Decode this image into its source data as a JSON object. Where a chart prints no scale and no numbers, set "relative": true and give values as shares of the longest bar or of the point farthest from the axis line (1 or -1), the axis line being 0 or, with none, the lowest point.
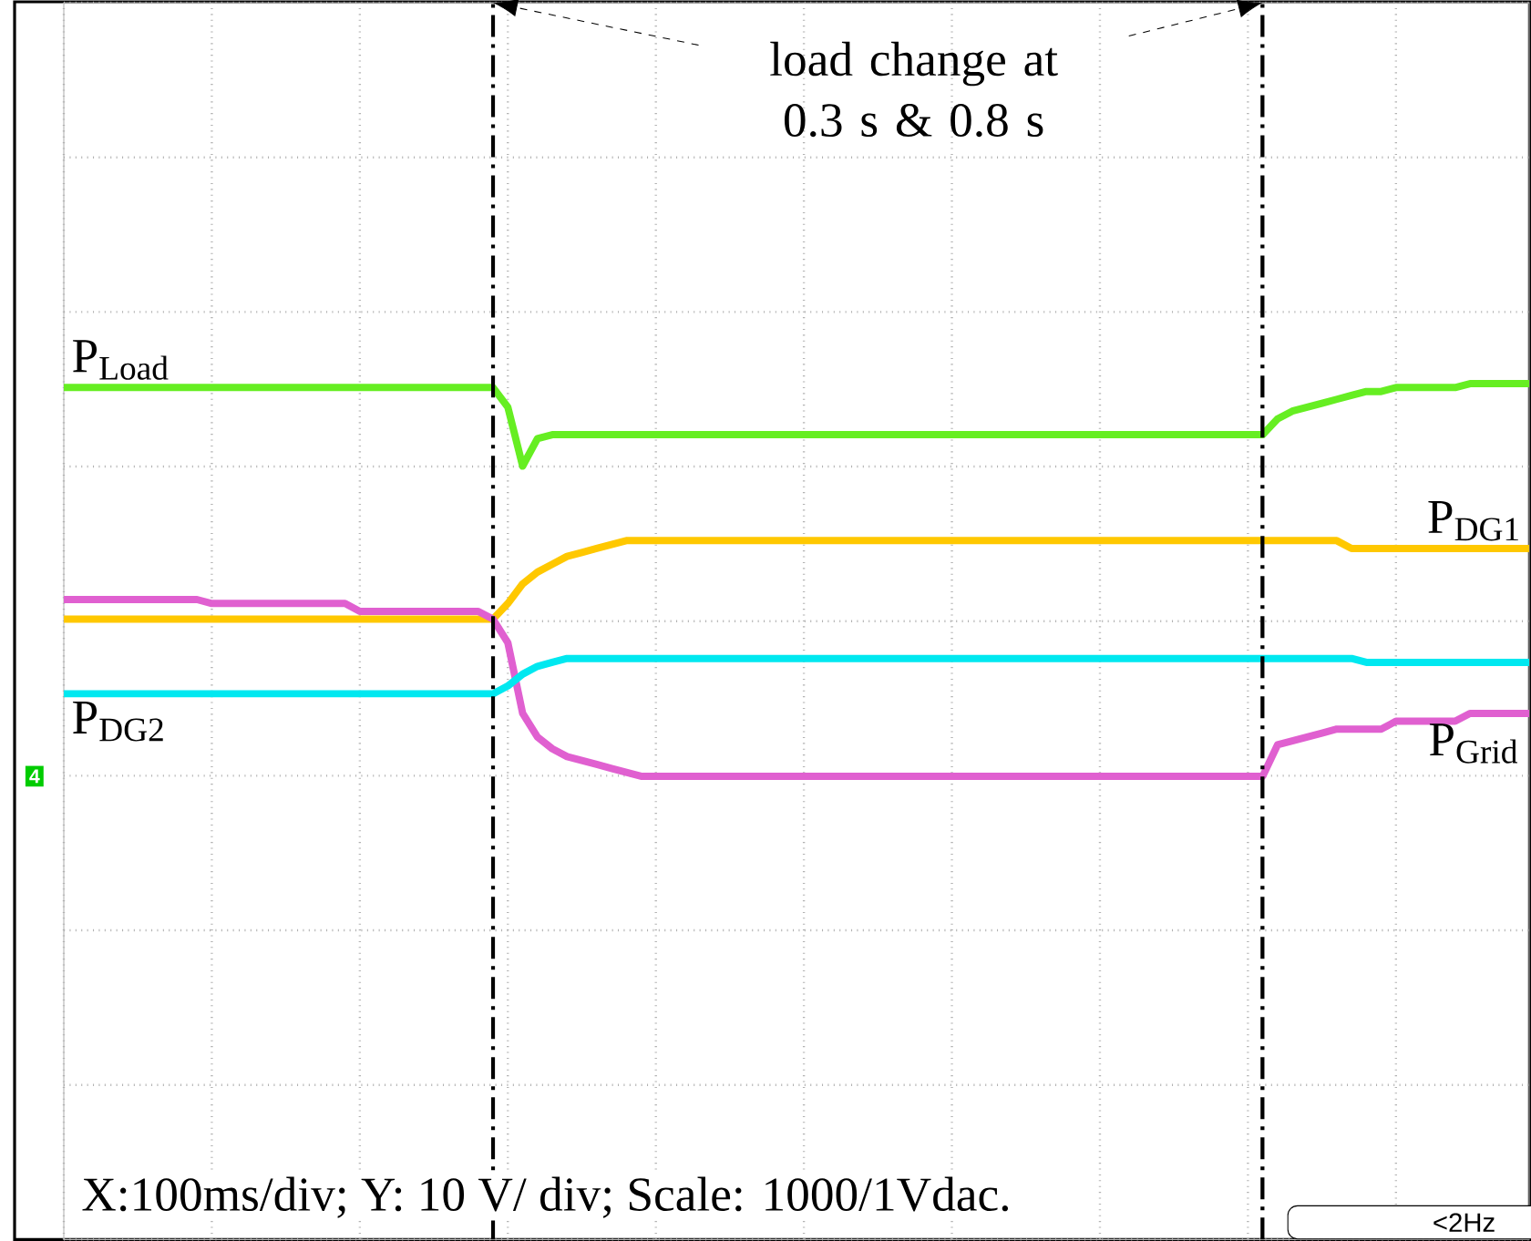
{
  "chart_data": {
    "type": "line",
    "relative": true,
    "grid": true,
    "categories": [
      null,
      null,
      null,
      null,
      null,
      null,
      null,
      null,
      null,
      null,
      null,
      null,
      null,
      null,
      null,
      null,
      null,
      null,
      null,
      null,
      null,
      null,
      null,
      null,
      null,
      null,
      null,
      null,
      null,
      null,
      null,
      null,
      null,
      null,
      null,
      null,
      null,
      null,
      null,
      null,
      null,
      null,
      null,
      null,
      null,
      null,
      null,
      null,
      null,
      null,
      null,
      null,
      null,
      null,
      null,
      null,
      null,
      null,
      null,
      null,
      null,
      null,
      null,
      null,
      null,
      null,
      null,
      null,
      null,
      null,
      null,
      null,
      null,
      null,
      null,
      null,
      null,
      null,
      null,
      null,
      null,
      null,
      null,
      null,
      null,
      null,
      null,
      null,
      null,
      null,
      null,
      null,
      null,
      null,
      null,
      null,
      null,
      null,
      null,
      null
    ],
    "series": [
      {
        "name": "P$_{Load}$",
        "color": "#66ee22",
        "values": [
          0.99,
          0.99,
          0.99,
          0.99,
          0.99,
          0.99,
          0.99,
          0.99,
          0.99,
          0.99,
          0.99,
          0.99,
          0.99,
          0.99,
          0.99,
          0.99,
          0.99,
          0.99,
          0.99,
          0.99,
          0.99,
          0.99,
          0.99,
          0.99,
          0.99,
          0.99,
          0.99,
          0.99,
          0.99,
          0.99,
          0.94,
          0.79,
          0.86,
          0.87,
          0.87,
          0.87,
          0.87,
          0.87,
          0.87,
          0.87,
          0.87,
          0.87,
          0.87,
          0.87,
          0.87,
          0.87,
          0.87,
          0.87,
          0.87,
          0.87,
          0.87,
          0.87,
          0.87,
          0.87,
          0.87,
          0.87,
          0.87,
          0.87,
          0.87,
          0.87,
          0.87,
          0.87,
          0.87,
          0.87,
          0.87,
          0.87,
          0.87,
          0.87,
          0.87,
          0.87,
          0.87,
          0.87,
          0.87,
          0.87,
          0.87,
          0.87,
          0.87,
          0.87,
          0.87,
          0.87,
          0.87,
          0.87,
          0.91,
          0.93,
          0.94,
          0.95,
          0.96,
          0.97,
          0.98,
          0.98,
          0.99,
          0.99,
          0.99,
          0.99,
          0.99,
          1.0,
          1.0,
          1.0,
          1.0,
          1.0
        ]
      },
      {
        "name": "P$_{DG1}$",
        "color": "#ffc800",
        "values": [
          0.4,
          0.4,
          0.4,
          0.4,
          0.4,
          0.4,
          0.4,
          0.4,
          0.4,
          0.4,
          0.4,
          0.4,
          0.4,
          0.4,
          0.4,
          0.4,
          0.4,
          0.4,
          0.4,
          0.4,
          0.4,
          0.4,
          0.4,
          0.4,
          0.4,
          0.4,
          0.4,
          0.4,
          0.4,
          0.4,
          0.44,
          0.49,
          0.52,
          0.54,
          0.56,
          0.57,
          0.58,
          0.59,
          0.6,
          0.6,
          0.6,
          0.6,
          0.6,
          0.6,
          0.6,
          0.6,
          0.6,
          0.6,
          0.6,
          0.6,
          0.6,
          0.6,
          0.6,
          0.6,
          0.6,
          0.6,
          0.6,
          0.6,
          0.6,
          0.6,
          0.6,
          0.6,
          0.6,
          0.6,
          0.6,
          0.6,
          0.6,
          0.6,
          0.6,
          0.6,
          0.6,
          0.6,
          0.6,
          0.6,
          0.6,
          0.6,
          0.6,
          0.6,
          0.6,
          0.6,
          0.6,
          0.6,
          0.6,
          0.6,
          0.6,
          0.6,
          0.6,
          0.58,
          0.58,
          0.58,
          0.58,
          0.58,
          0.58,
          0.58,
          0.58,
          0.58,
          0.58,
          0.58,
          0.58,
          0.58
        ]
      },
      {
        "name": "P$_{Grid}$",
        "color": "#e060d0",
        "values": [
          0.45,
          0.45,
          0.45,
          0.45,
          0.45,
          0.45,
          0.45,
          0.45,
          0.45,
          0.45,
          0.44,
          0.44,
          0.44,
          0.44,
          0.44,
          0.44,
          0.44,
          0.44,
          0.44,
          0.44,
          0.42,
          0.42,
          0.42,
          0.42,
          0.42,
          0.42,
          0.42,
          0.42,
          0.42,
          0.4,
          0.34,
          0.16,
          0.1,
          0.07,
          0.05,
          0.04,
          0.03,
          0.02,
          0.01,
          0.0,
          0.0,
          0.0,
          0.0,
          0.0,
          0.0,
          0.0,
          0.0,
          0.0,
          0.0,
          0.0,
          0.0,
          0.0,
          0.0,
          0.0,
          0.0,
          0.0,
          0.0,
          0.0,
          0.0,
          0.0,
          0.0,
          0.0,
          0.0,
          0.0,
          0.0,
          0.0,
          0.0,
          0.0,
          0.0,
          0.0,
          0.0,
          0.0,
          0.0,
          0.0,
          0.0,
          0.0,
          0.0,
          0.0,
          0.0,
          0.0,
          0.0,
          0.0,
          0.08,
          0.09,
          0.1,
          0.11,
          0.12,
          0.12,
          0.12,
          0.12,
          0.14,
          0.14,
          0.14,
          0.14,
          0.14,
          0.16,
          0.16,
          0.16,
          0.16,
          0.16
        ]
      },
      {
        "name": "P$_{DG2}$",
        "color": "#00e8f0",
        "values": [
          0.21,
          0.21,
          0.21,
          0.21,
          0.21,
          0.21,
          0.21,
          0.21,
          0.21,
          0.21,
          0.21,
          0.21,
          0.21,
          0.21,
          0.21,
          0.21,
          0.21,
          0.21,
          0.21,
          0.21,
          0.21,
          0.21,
          0.21,
          0.21,
          0.21,
          0.21,
          0.21,
          0.21,
          0.21,
          0.21,
          0.23,
          0.26,
          0.28,
          0.29,
          0.3,
          0.3,
          0.3,
          0.3,
          0.3,
          0.3,
          0.3,
          0.3,
          0.3,
          0.3,
          0.3,
          0.3,
          0.3,
          0.3,
          0.3,
          0.3,
          0.3,
          0.3,
          0.3,
          0.3,
          0.3,
          0.3,
          0.3,
          0.3,
          0.3,
          0.3,
          0.3,
          0.3,
          0.3,
          0.3,
          0.3,
          0.3,
          0.3,
          0.3,
          0.3,
          0.3,
          0.3,
          0.3,
          0.3,
          0.3,
          0.3,
          0.3,
          0.3,
          0.3,
          0.3,
          0.3,
          0.3,
          0.3,
          0.3,
          0.3,
          0.3,
          0.3,
          0.3,
          0.3,
          0.29,
          0.29,
          0.29,
          0.29,
          0.29,
          0.29,
          0.29,
          0.29,
          0.29,
          0.29,
          0.29,
          0.29
        ]
      }
    ],
    "annotations": [
      "load change at 0.3 s & 0.8 s",
      "X:100ms/div; Y: 10 V/ div; Scale: 1000/1Vdac.",
      "<2Hz",
      "4"
    ]
  }
}
